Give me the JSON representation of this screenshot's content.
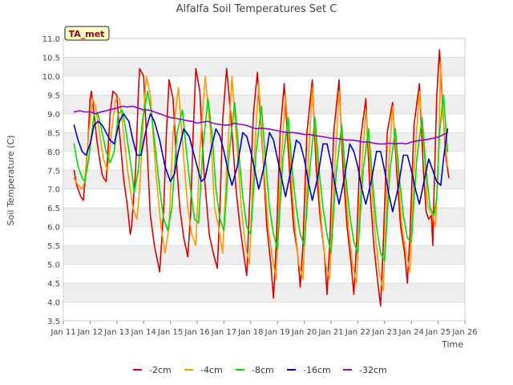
{
  "chart_data": {
    "type": "line",
    "title": "Alfalfa Soil Temperatures Set C",
    "xlabel": "Time",
    "ylabel": "Soil Temperature (C)",
    "annotation": "TA_met",
    "ylim": [
      3.5,
      11.0
    ],
    "yticks": [
      3.5,
      4.0,
      4.5,
      5.0,
      5.5,
      6.0,
      6.5,
      7.0,
      7.5,
      8.0,
      8.5,
      9.0,
      9.5,
      10.0,
      10.5,
      11.0
    ],
    "xlim": [
      11,
      26
    ],
    "xticks": [
      {
        "x": 11,
        "label": "Jan 11"
      },
      {
        "x": 12,
        "label": "Jan 12"
      },
      {
        "x": 13,
        "label": "Jan 13"
      },
      {
        "x": 14,
        "label": "Jan 14"
      },
      {
        "x": 15,
        "label": "Jan 15"
      },
      {
        "x": 16,
        "label": "Jan 16"
      },
      {
        "x": 17,
        "label": "Jan 17"
      },
      {
        "x": 18,
        "label": "Jan 18"
      },
      {
        "x": 19,
        "label": "Jan 19"
      },
      {
        "x": 20,
        "label": "Jan 20"
      },
      {
        "x": 21,
        "label": "Jan 21"
      },
      {
        "x": 22,
        "label": "Jan 22"
      },
      {
        "x": 23,
        "label": "Jan 23"
      },
      {
        "x": 24,
        "label": "Jan 24"
      },
      {
        "x": 25,
        "label": "Jan 25"
      },
      {
        "x": 26,
        "label": "Jan 26"
      }
    ],
    "grid": true,
    "legend": "bottom",
    "series": [
      {
        "name": "-2cm",
        "color": "#dd0000",
        "x": [
          11.4,
          11.5,
          11.6,
          11.65,
          11.75,
          11.9,
          12.0,
          12.05,
          12.15,
          12.25,
          12.35,
          12.45,
          12.5,
          12.6,
          12.75,
          12.85,
          13.0,
          13.1,
          13.25,
          13.4,
          13.5,
          13.55,
          13.7,
          13.8,
          13.85,
          14.0,
          14.1,
          14.2,
          14.25,
          14.4,
          14.6,
          14.75,
          14.85,
          14.95,
          15.1,
          15.25,
          15.35,
          15.5,
          15.65,
          15.75,
          15.85,
          15.95,
          16.1,
          16.25,
          16.45,
          16.6,
          16.75,
          16.85,
          16.95,
          17.1,
          17.25,
          17.45,
          17.6,
          17.75,
          17.85,
          17.95,
          18.1,
          18.25,
          18.45,
          18.6,
          18.75,
          18.85,
          18.95,
          19.1,
          19.25,
          19.45,
          19.6,
          19.75,
          19.85,
          19.95,
          20.1,
          20.3,
          20.45,
          20.6,
          20.75,
          20.85,
          20.95,
          21.1,
          21.3,
          21.45,
          21.6,
          21.75,
          21.85,
          21.95,
          22.1,
          22.3,
          22.45,
          22.6,
          22.75,
          22.85,
          22.95,
          23.1,
          23.3,
          23.45,
          23.6,
          23.75,
          23.85,
          23.95,
          24.1,
          24.3,
          24.45,
          24.55,
          24.65,
          24.75,
          24.8,
          24.85,
          24.95,
          25.05,
          25.2,
          25.3,
          25.4
        ],
        "y": [
          7.5,
          7.1,
          6.9,
          6.8,
          6.7,
          8.0,
          9.4,
          9.6,
          9.0,
          8.3,
          7.8,
          7.4,
          7.3,
          7.2,
          9.0,
          9.6,
          9.5,
          8.5,
          7.3,
          6.5,
          5.8,
          6.0,
          7.5,
          9.5,
          10.2,
          10.0,
          8.5,
          7.0,
          6.3,
          5.5,
          4.8,
          6.5,
          8.5,
          9.9,
          9.4,
          7.5,
          6.5,
          5.7,
          5.2,
          6.3,
          8.5,
          10.2,
          9.6,
          7.5,
          5.8,
          5.3,
          4.9,
          6.5,
          8.8,
          10.2,
          9.0,
          7.0,
          6.0,
          5.2,
          4.7,
          6.5,
          9.0,
          10.1,
          8.0,
          6.0,
          5.0,
          4.1,
          5.5,
          8.5,
          9.8,
          7.5,
          6.0,
          5.3,
          4.4,
          5.5,
          8.5,
          9.9,
          7.5,
          6.2,
          5.3,
          4.2,
          5.5,
          8.5,
          9.9,
          7.5,
          6.0,
          5.0,
          4.2,
          5.5,
          8.3,
          9.4,
          7.0,
          5.5,
          4.5,
          3.9,
          5.5,
          8.5,
          9.3,
          7.5,
          6.0,
          5.3,
          4.5,
          5.8,
          8.7,
          9.8,
          7.5,
          6.4,
          6.2,
          6.3,
          5.5,
          7.0,
          9.5,
          10.7,
          8.8,
          7.8,
          7.3
        ]
      },
      {
        "name": "-4cm",
        "color": "#ff9900",
        "x": [
          11.4,
          11.55,
          11.7,
          11.8,
          11.95,
          12.1,
          12.2,
          12.35,
          12.5,
          12.65,
          12.8,
          12.95,
          13.1,
          13.25,
          13.4,
          13.6,
          13.75,
          13.85,
          14.0,
          14.1,
          14.25,
          14.45,
          14.65,
          14.8,
          14.95,
          15.1,
          15.3,
          15.5,
          15.65,
          15.8,
          15.95,
          16.1,
          16.3,
          16.5,
          16.65,
          16.8,
          16.95,
          17.1,
          17.3,
          17.5,
          17.65,
          17.8,
          17.95,
          18.1,
          18.3,
          18.5,
          18.65,
          18.8,
          18.95,
          19.1,
          19.3,
          19.5,
          19.65,
          19.8,
          19.95,
          20.1,
          20.3,
          20.5,
          20.65,
          20.8,
          20.95,
          21.1,
          21.3,
          21.5,
          21.65,
          21.8,
          21.95,
          22.1,
          22.3,
          22.5,
          22.65,
          22.8,
          22.95,
          23.1,
          23.3,
          23.5,
          23.65,
          23.8,
          23.95,
          24.1,
          24.3,
          24.5,
          24.6,
          24.7,
          24.8,
          24.9,
          25.0,
          25.1,
          25.2,
          25.35
        ],
        "y": [
          7.3,
          7.1,
          7.0,
          7.2,
          8.5,
          9.4,
          9.2,
          8.5,
          7.8,
          7.5,
          8.5,
          9.4,
          9.4,
          8.5,
          7.5,
          6.5,
          6.2,
          7.0,
          9.0,
          10.0,
          9.5,
          7.5,
          6.0,
          5.3,
          6.0,
          8.5,
          9.7,
          7.8,
          6.5,
          5.8,
          5.5,
          8.0,
          10.0,
          8.5,
          6.5,
          6.0,
          5.3,
          7.5,
          10.0,
          8.0,
          6.5,
          5.5,
          5.0,
          7.5,
          9.8,
          7.5,
          6.0,
          5.2,
          4.6,
          7.3,
          9.5,
          7.5,
          6.0,
          5.0,
          4.6,
          7.0,
          9.7,
          7.5,
          6.0,
          5.0,
          4.6,
          7.0,
          9.6,
          7.5,
          6.0,
          5.0,
          4.5,
          7.0,
          9.1,
          7.3,
          5.8,
          4.8,
          4.3,
          7.0,
          9.2,
          7.4,
          6.0,
          5.3,
          4.8,
          7.5,
          9.6,
          7.8,
          6.6,
          6.4,
          6.3,
          6.0,
          7.5,
          10.4,
          8.8,
          7.6
        ]
      },
      {
        "name": "-8cm",
        "color": "#00dd00",
        "x": [
          11.4,
          11.55,
          11.7,
          11.8,
          11.95,
          12.15,
          12.3,
          12.45,
          12.6,
          12.75,
          12.9,
          13.05,
          13.2,
          13.35,
          13.55,
          13.65,
          13.8,
          13.95,
          14.15,
          14.3,
          14.45,
          14.6,
          14.75,
          14.9,
          15.05,
          15.25,
          15.45,
          15.6,
          15.75,
          15.9,
          16.05,
          16.2,
          16.4,
          16.55,
          16.7,
          16.85,
          17.0,
          17.2,
          17.4,
          17.55,
          17.7,
          17.85,
          18.0,
          18.2,
          18.4,
          18.55,
          18.7,
          18.85,
          19.0,
          19.2,
          19.4,
          19.55,
          19.7,
          19.85,
          20.0,
          20.2,
          20.4,
          20.55,
          20.7,
          20.85,
          21.0,
          21.2,
          21.4,
          21.55,
          21.7,
          21.85,
          22.0,
          22.2,
          22.4,
          22.55,
          22.7,
          22.85,
          23.0,
          23.2,
          23.4,
          23.55,
          23.7,
          23.85,
          24.0,
          24.2,
          24.4,
          24.55,
          24.7,
          24.85,
          24.95,
          25.05,
          25.2,
          25.35
        ],
        "y": [
          8.2,
          7.6,
          7.3,
          7.2,
          7.8,
          9.0,
          9.0,
          8.5,
          8.0,
          7.7,
          8.0,
          9.0,
          9.1,
          8.5,
          7.5,
          6.9,
          7.5,
          8.8,
          9.6,
          9.0,
          8.0,
          7.0,
          6.2,
          5.9,
          6.5,
          8.5,
          9.1,
          8.0,
          7.0,
          6.2,
          6.1,
          8.0,
          9.4,
          8.5,
          7.0,
          6.2,
          5.9,
          8.0,
          9.3,
          8.0,
          6.8,
          6.0,
          5.8,
          8.0,
          9.2,
          7.8,
          6.5,
          5.8,
          5.4,
          7.8,
          8.9,
          7.5,
          6.5,
          5.8,
          5.5,
          7.5,
          8.9,
          7.5,
          6.5,
          5.8,
          5.3,
          7.5,
          8.7,
          7.3,
          6.3,
          5.6,
          5.3,
          7.5,
          8.6,
          7.2,
          6.0,
          5.3,
          5.1,
          7.5,
          8.6,
          7.3,
          6.3,
          5.7,
          5.6,
          7.8,
          8.9,
          7.5,
          6.5,
          6.3,
          6.8,
          8.5,
          9.5,
          8.0
        ]
      },
      {
        "name": "-16cm",
        "color": "#0000cc",
        "x": [
          11.4,
          11.55,
          11.7,
          11.85,
          12.0,
          12.15,
          12.3,
          12.45,
          12.6,
          12.75,
          12.9,
          13.1,
          13.25,
          13.45,
          13.6,
          13.75,
          13.9,
          14.1,
          14.25,
          14.4,
          14.6,
          14.8,
          15.0,
          15.15,
          15.3,
          15.5,
          15.7,
          15.85,
          16.0,
          16.15,
          16.3,
          16.5,
          16.7,
          16.85,
          17.0,
          17.15,
          17.3,
          17.5,
          17.7,
          17.85,
          18.0,
          18.15,
          18.3,
          18.5,
          18.7,
          18.85,
          19.0,
          19.15,
          19.3,
          19.5,
          19.7,
          19.85,
          20.0,
          20.15,
          20.3,
          20.5,
          20.7,
          20.85,
          21.0,
          21.15,
          21.3,
          21.5,
          21.7,
          21.85,
          22.0,
          22.15,
          22.3,
          22.5,
          22.7,
          22.85,
          23.0,
          23.15,
          23.3,
          23.5,
          23.7,
          23.85,
          24.0,
          24.15,
          24.3,
          24.5,
          24.65,
          24.8,
          24.95,
          25.1,
          25.2,
          25.35
        ],
        "y": [
          8.7,
          8.3,
          8.0,
          7.9,
          8.2,
          8.7,
          8.8,
          8.7,
          8.5,
          8.3,
          8.2,
          8.8,
          9.0,
          8.8,
          8.3,
          7.9,
          7.9,
          8.6,
          9.0,
          8.8,
          8.3,
          7.6,
          7.2,
          7.4,
          8.0,
          8.6,
          8.4,
          8.0,
          7.6,
          7.2,
          7.3,
          8.0,
          8.6,
          8.4,
          8.0,
          7.5,
          7.1,
          7.6,
          8.5,
          8.4,
          8.0,
          7.5,
          7.0,
          7.6,
          8.5,
          8.3,
          7.8,
          7.3,
          6.8,
          7.5,
          8.3,
          8.2,
          7.8,
          7.2,
          6.7,
          7.3,
          8.2,
          8.2,
          7.7,
          7.1,
          6.6,
          7.3,
          8.2,
          8.0,
          7.6,
          7.0,
          6.6,
          7.2,
          8.0,
          8.0,
          7.5,
          6.9,
          6.4,
          7.0,
          7.9,
          7.9,
          7.5,
          7.0,
          6.6,
          7.3,
          7.8,
          7.5,
          7.2,
          7.1,
          7.8,
          8.6
        ]
      },
      {
        "name": "-32cm",
        "color": "#9900cc",
        "x": [
          11.4,
          11.6,
          11.8,
          12.0,
          12.2,
          12.4,
          12.6,
          12.8,
          13.0,
          13.2,
          13.4,
          13.6,
          13.8,
          14.0,
          14.2,
          14.4,
          14.6,
          14.8,
          15.0,
          15.2,
          15.4,
          15.6,
          15.8,
          16.0,
          16.2,
          16.4,
          16.6,
          16.8,
          17.0,
          17.2,
          17.4,
          17.6,
          17.8,
          18.0,
          18.2,
          18.4,
          18.6,
          18.8,
          19.0,
          19.2,
          19.4,
          19.6,
          19.8,
          20.0,
          20.2,
          20.4,
          20.6,
          20.8,
          21.0,
          21.2,
          21.4,
          21.6,
          21.8,
          22.0,
          22.2,
          22.4,
          22.6,
          22.8,
          23.0,
          23.2,
          23.4,
          23.6,
          23.8,
          24.0,
          24.2,
          24.4,
          24.6,
          24.8,
          25.0,
          25.2,
          25.35
        ],
        "y": [
          9.05,
          9.08,
          9.05,
          9.05,
          9.0,
          9.05,
          9.08,
          9.12,
          9.15,
          9.2,
          9.18,
          9.2,
          9.15,
          9.1,
          9.1,
          9.05,
          9.0,
          8.95,
          8.9,
          8.88,
          8.85,
          8.82,
          8.8,
          8.75,
          8.78,
          8.8,
          8.75,
          8.72,
          8.7,
          8.7,
          8.75,
          8.72,
          8.7,
          8.65,
          8.6,
          8.62,
          8.6,
          8.58,
          8.55,
          8.52,
          8.5,
          8.5,
          8.48,
          8.45,
          8.45,
          8.42,
          8.4,
          8.38,
          8.35,
          8.35,
          8.32,
          8.3,
          8.3,
          8.28,
          8.25,
          8.25,
          8.22,
          8.2,
          8.2,
          8.22,
          8.2,
          8.22,
          8.2,
          8.25,
          8.28,
          8.3,
          8.32,
          8.35,
          8.38,
          8.45,
          8.5
        ]
      }
    ]
  }
}
